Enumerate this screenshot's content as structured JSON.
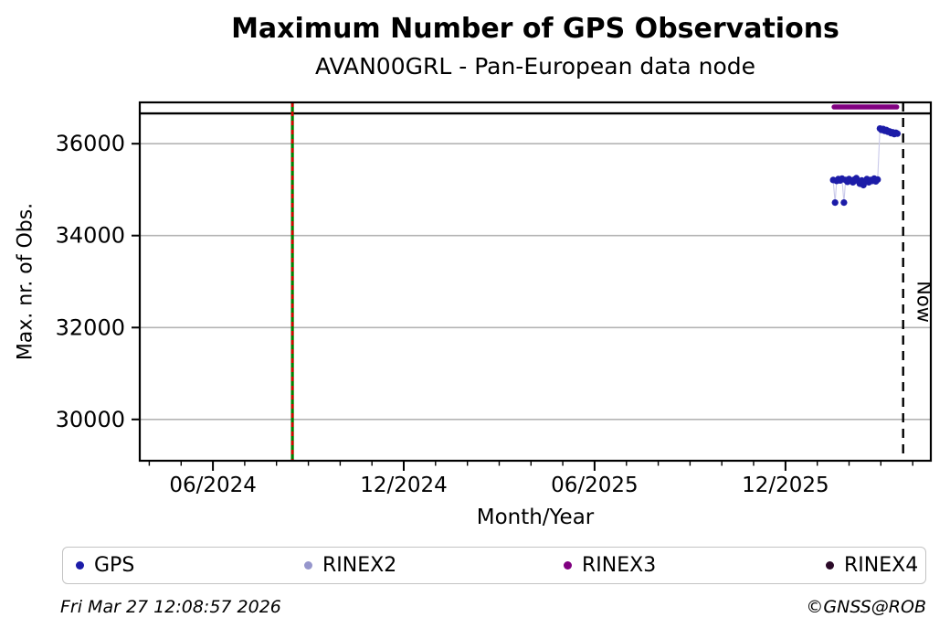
{
  "chart_data": {
    "type": "scatter",
    "title": "Maximum Number of GPS Observations",
    "subtitle": "AVAN00GRL - Pan-European data node",
    "x_axis": {
      "label": "Month/Year",
      "unit": "months since 2024-01 (0 = Jan 2024)",
      "lim": [
        2.7,
        27.57
      ],
      "ticks": [
        {
          "pos": 5,
          "label": "06/2024"
        },
        {
          "pos": 11,
          "label": "12/2024"
        },
        {
          "pos": 17,
          "label": "06/2025"
        },
        {
          "pos": 23,
          "label": "12/2025"
        }
      ],
      "minor_ticks": [
        3,
        4,
        6,
        7,
        8,
        9,
        10,
        12,
        13,
        14,
        15,
        16,
        18,
        19,
        20,
        21,
        22,
        24,
        25,
        26,
        27
      ]
    },
    "y_axis": {
      "label": "Max. nr. of Obs.",
      "lim": [
        29100,
        36900
      ],
      "ticks": [
        {
          "pos": 30000,
          "label": "30000"
        },
        {
          "pos": 32000,
          "label": "32000"
        },
        {
          "pos": 34000,
          "label": "34000"
        },
        {
          "pos": 36000,
          "label": "36000"
        }
      ]
    },
    "grid": "horizontal-only",
    "grid_color": "#b4b4b4",
    "annotations": {
      "max_line": {
        "type": "hline",
        "value": 36660,
        "color": "#000000"
      },
      "event_line": {
        "type": "vline",
        "pos": 7.5,
        "approx_date": "mid-Aug 2024",
        "solid_color": "#008000",
        "dash_color": "#dd0000"
      },
      "now_line": {
        "type": "vline",
        "pos": 26.7,
        "label": "Now",
        "color": "#000000",
        "dashed": true
      }
    },
    "series": [
      {
        "name": "GPS",
        "marker_color": "#1c1ca8",
        "connector_color": "#c9c9ea",
        "points": [
          [
            24.5,
            35210
          ],
          [
            24.56,
            34720
          ],
          [
            24.61,
            35190
          ],
          [
            24.66,
            35230
          ],
          [
            24.72,
            35200
          ],
          [
            24.78,
            35240
          ],
          [
            24.84,
            34720
          ],
          [
            24.89,
            35210
          ],
          [
            24.95,
            35170
          ],
          [
            25.0,
            35230
          ],
          [
            25.06,
            35200
          ],
          [
            25.12,
            35160
          ],
          [
            25.17,
            35220
          ],
          [
            25.23,
            35250
          ],
          [
            25.28,
            35190
          ],
          [
            25.34,
            35130
          ],
          [
            25.4,
            35200
          ],
          [
            25.45,
            35100
          ],
          [
            25.51,
            35170
          ],
          [
            25.56,
            35230
          ],
          [
            25.62,
            35160
          ],
          [
            25.68,
            35210
          ],
          [
            25.73,
            35190
          ],
          [
            25.79,
            35240
          ],
          [
            25.84,
            35180
          ],
          [
            25.9,
            35220
          ],
          [
            25.97,
            36330
          ],
          [
            26.02,
            36300
          ],
          [
            26.07,
            36320
          ],
          [
            26.12,
            36280
          ],
          [
            26.17,
            36300
          ],
          [
            26.22,
            36260
          ],
          [
            26.27,
            36270
          ],
          [
            26.32,
            36230
          ],
          [
            26.37,
            36250
          ],
          [
            26.42,
            36210
          ],
          [
            26.47,
            36240
          ],
          [
            26.52,
            36220
          ]
        ]
      },
      {
        "name": "RINEX2",
        "marker_color": "#9696cc",
        "points": []
      },
      {
        "name": "RINEX3",
        "marker_color": "#800080",
        "render": "thick-line",
        "thickness": 5.5,
        "points": [
          [
            24.53,
            36800
          ],
          [
            26.5,
            36800
          ]
        ]
      },
      {
        "name": "RINEX4",
        "marker_color": "#2b0a28",
        "points": []
      }
    ]
  },
  "legend": {
    "items": [
      {
        "label": "GPS",
        "color": "#1c1ca8"
      },
      {
        "label": "RINEX2",
        "color": "#9696cc"
      },
      {
        "label": "RINEX3",
        "color": "#800080"
      },
      {
        "label": "RINEX4",
        "color": "#2b0a28"
      }
    ]
  },
  "footer": {
    "generated": "Fri Mar 27 12:08:57 2026",
    "credit": "©GNSS@ROB"
  }
}
